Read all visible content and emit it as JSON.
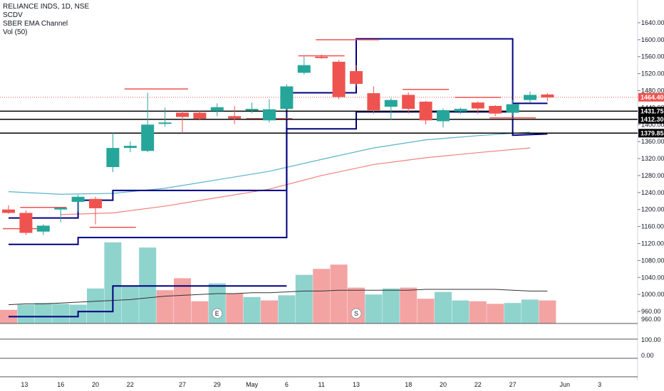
{
  "legend": {
    "symbol": "RELIANCE INDS, 1D, NSE",
    "ind1": "SCDV",
    "ind2": "SBER EMA Channel",
    "ind3": "Vol (50)"
  },
  "colors": {
    "up": "#26a69a",
    "down": "#ef5350",
    "vol_up": "#8fd3cd",
    "vol_down": "#f4a3a3",
    "channel": "#000080",
    "ema_fast": "#5ab4c8",
    "ema_slow": "#f08080",
    "level_red": "#ef5350",
    "ref_line": "#000000"
  },
  "chart_data": {
    "type": "candlestick",
    "price_axis": {
      "ylim": [
        940,
        1660
      ],
      "ticks": [
        960,
        1000,
        1040,
        1080,
        1120,
        1160,
        1200,
        1240,
        1280,
        1320,
        1360,
        1400,
        1440,
        1480,
        1520,
        1560,
        1600,
        1640
      ]
    },
    "x_ticks": [
      {
        "i": 1,
        "label": "13"
      },
      {
        "i": 3,
        "label": "16"
      },
      {
        "i": 5,
        "label": "20"
      },
      {
        "i": 7,
        "label": "22"
      },
      {
        "i": 10,
        "label": "27"
      },
      {
        "i": 12,
        "label": "29"
      },
      {
        "i": 14,
        "label": "May"
      },
      {
        "i": 16,
        "label": "6"
      },
      {
        "i": 18,
        "label": "11"
      },
      {
        "i": 20,
        "label": "13"
      },
      {
        "i": 23,
        "label": "18"
      },
      {
        "i": 25,
        "label": "20"
      },
      {
        "i": 27,
        "label": "22"
      },
      {
        "i": 29,
        "label": "27"
      },
      {
        "i": 32,
        "label": "Jun"
      },
      {
        "i": 34,
        "label": "3"
      }
    ],
    "candles": [
      {
        "o": 1200,
        "h": 1210,
        "l": 1190,
        "c": 1192
      },
      {
        "o": 1192,
        "h": 1198,
        "l": 1140,
        "c": 1145
      },
      {
        "o": 1148,
        "h": 1165,
        "l": 1140,
        "c": 1162
      },
      {
        "o": 1200,
        "h": 1205,
        "l": 1170,
        "c": 1204
      },
      {
        "o": 1218,
        "h": 1235,
        "l": 1195,
        "c": 1230
      },
      {
        "o": 1225,
        "h": 1230,
        "l": 1165,
        "c": 1203
      },
      {
        "o": 1300,
        "h": 1380,
        "l": 1288,
        "c": 1345
      },
      {
        "o": 1345,
        "h": 1360,
        "l": 1335,
        "c": 1350
      },
      {
        "o": 1338,
        "h": 1475,
        "l": 1335,
        "c": 1400
      },
      {
        "o": 1402,
        "h": 1440,
        "l": 1395,
        "c": 1405
      },
      {
        "o": 1428,
        "h": 1432,
        "l": 1380,
        "c": 1418
      },
      {
        "o": 1428,
        "h": 1432,
        "l": 1410,
        "c": 1414
      },
      {
        "o": 1432,
        "h": 1450,
        "l": 1420,
        "c": 1441
      },
      {
        "o": 1420,
        "h": 1444,
        "l": 1401,
        "c": 1414
      },
      {
        "o": 1433,
        "h": 1452,
        "l": 1427,
        "c": 1437
      },
      {
        "o": 1410,
        "h": 1460,
        "l": 1405,
        "c": 1436
      },
      {
        "o": 1437,
        "h": 1495,
        "l": 1434,
        "c": 1490
      },
      {
        "o": 1522,
        "h": 1560,
        "l": 1518,
        "c": 1540
      },
      {
        "o": 1560,
        "h": 1565,
        "l": 1555,
        "c": 1558
      },
      {
        "o": 1548,
        "h": 1552,
        "l": 1460,
        "c": 1465
      },
      {
        "o": 1526,
        "h": 1540,
        "l": 1490,
        "c": 1496
      },
      {
        "o": 1474,
        "h": 1490,
        "l": 1425,
        "c": 1434
      },
      {
        "o": 1442,
        "h": 1462,
        "l": 1412,
        "c": 1458
      },
      {
        "o": 1470,
        "h": 1476,
        "l": 1426,
        "c": 1437
      },
      {
        "o": 1454,
        "h": 1456,
        "l": 1400,
        "c": 1410
      },
      {
        "o": 1408,
        "h": 1438,
        "l": 1393,
        "c": 1434
      },
      {
        "o": 1431,
        "h": 1440,
        "l": 1425,
        "c": 1437
      },
      {
        "o": 1452,
        "h": 1455,
        "l": 1425,
        "c": 1438
      },
      {
        "o": 1444,
        "h": 1446,
        "l": 1420,
        "c": 1426
      },
      {
        "o": 1428,
        "h": 1458,
        "l": 1420,
        "c": 1448
      },
      {
        "o": 1458,
        "h": 1478,
        "l": 1452,
        "c": 1470
      },
      {
        "o": 1471,
        "h": 1474,
        "l": 1455,
        "c": 1464
      }
    ],
    "volumes": [
      {
        "v": 0.16,
        "up": false
      },
      {
        "v": 0.22,
        "up": true
      },
      {
        "v": 0.24,
        "up": true
      },
      {
        "v": 0.23,
        "up": true
      },
      {
        "v": 0.22,
        "up": true
      },
      {
        "v": 0.41,
        "up": true
      },
      {
        "v": 0.95,
        "up": true
      },
      {
        "v": 0.44,
        "up": true
      },
      {
        "v": 0.89,
        "up": true
      },
      {
        "v": 0.39,
        "up": false
      },
      {
        "v": 0.53,
        "up": false
      },
      {
        "v": 0.26,
        "up": false
      },
      {
        "v": 0.47,
        "up": true
      },
      {
        "v": 0.35,
        "up": false
      },
      {
        "v": 0.31,
        "up": true
      },
      {
        "v": 0.27,
        "up": false
      },
      {
        "v": 0.33,
        "up": true
      },
      {
        "v": 0.57,
        "up": true
      },
      {
        "v": 0.64,
        "up": false
      },
      {
        "v": 0.69,
        "up": false
      },
      {
        "v": 0.42,
        "up": false
      },
      {
        "v": 0.34,
        "up": true
      },
      {
        "v": 0.41,
        "up": true
      },
      {
        "v": 0.42,
        "up": false
      },
      {
        "v": 0.29,
        "up": false
      },
      {
        "v": 0.37,
        "up": true
      },
      {
        "v": 0.27,
        "up": true
      },
      {
        "v": 0.26,
        "up": false
      },
      {
        "v": 0.23,
        "up": false
      },
      {
        "v": 0.24,
        "up": true
      },
      {
        "v": 0.28,
        "up": true
      },
      {
        "v": 0.27,
        "up": false
      }
    ],
    "volume_ma": [
      0.22,
      0.23,
      0.23,
      0.24,
      0.25,
      0.26,
      0.27,
      0.28,
      0.3,
      0.32,
      0.33,
      0.34,
      0.35,
      0.35,
      0.36,
      0.36,
      0.37,
      0.38,
      0.38,
      0.39,
      0.39,
      0.39,
      0.39,
      0.39,
      0.4,
      0.4,
      0.4,
      0.4,
      0.4,
      0.39,
      0.38,
      0.38
    ],
    "ema_fast": [
      [
        0,
        1242
      ],
      [
        3,
        1236
      ],
      [
        6,
        1238
      ],
      [
        9,
        1250
      ],
      [
        12,
        1270
      ],
      [
        15,
        1290
      ],
      [
        18,
        1318
      ],
      [
        21,
        1345
      ],
      [
        24,
        1364
      ],
      [
        27,
        1374
      ],
      [
        30,
        1382
      ]
    ],
    "ema_slow": [
      [
        3,
        1188
      ],
      [
        6,
        1192
      ],
      [
        9,
        1208
      ],
      [
        12,
        1228
      ],
      [
        15,
        1248
      ],
      [
        18,
        1280
      ],
      [
        21,
        1306
      ],
      [
        24,
        1322
      ],
      [
        27,
        1334
      ],
      [
        30,
        1345
      ]
    ],
    "channel_upper": [
      [
        0,
        1180
      ],
      [
        4,
        1180
      ],
      [
        4,
        1222
      ],
      [
        6,
        1222
      ],
      [
        6,
        1245
      ],
      [
        16,
        1245
      ],
      [
        16,
        1475
      ],
      [
        20,
        1475
      ],
      [
        20,
        1602
      ],
      [
        29,
        1602
      ],
      [
        29,
        1450
      ],
      [
        31,
        1450
      ]
    ],
    "channel_lower": [
      [
        0,
        1118
      ],
      [
        4,
        1118
      ],
      [
        4,
        1134
      ],
      [
        6,
        1134
      ],
      [
        6,
        1134
      ],
      [
        16,
        1134
      ],
      [
        16,
        1390
      ],
      [
        20,
        1390
      ],
      [
        20,
        1430
      ],
      [
        29,
        1430
      ],
      [
        29,
        1375
      ],
      [
        31,
        1378
      ]
    ],
    "channel_vol": [
      [
        0,
        0.08
      ],
      [
        4,
        0.08
      ],
      [
        4,
        0.14
      ],
      [
        6,
        0.14
      ],
      [
        6,
        0.44
      ],
      [
        16,
        0.44
      ]
    ],
    "red_levels": [
      {
        "from": 0,
        "to": 2,
        "y": 1155
      },
      {
        "from": 1,
        "to": 3,
        "y": 1205
      },
      {
        "from": 5,
        "to": 7,
        "y": 1158
      },
      {
        "from": 7,
        "to": 10,
        "y": 1484
      },
      {
        "from": 14,
        "to": 16,
        "y": 1414
      },
      {
        "from": 17,
        "to": 19,
        "y": 1562
      },
      {
        "from": 18,
        "to": 21,
        "y": 1600
      },
      {
        "from": 23,
        "to": 25,
        "y": 1483
      },
      {
        "from": 26,
        "to": 28,
        "y": 1464
      },
      {
        "from": 28,
        "to": 30,
        "y": 1416
      }
    ],
    "horizontal_lines": [
      1431.75,
      1412.3,
      1379.85
    ],
    "current_price": 1464.4,
    "price_labels": [
      {
        "value": "1464.40",
        "y": 1464.4
      },
      {
        "value": "1431.75",
        "y": 1431.75
      },
      {
        "value": "1412.30",
        "y": 1412.3
      },
      {
        "value": "1379.85",
        "y": 1379.85
      }
    ],
    "events": [
      {
        "i": 12,
        "label": "E"
      },
      {
        "i": 20,
        "label": "S"
      }
    ],
    "sub_panes": [
      {
        "labels": [
          "960.00"
        ]
      },
      {
        "labels": [
          "100.00"
        ]
      },
      {
        "labels": [
          "0.00"
        ]
      }
    ]
  }
}
